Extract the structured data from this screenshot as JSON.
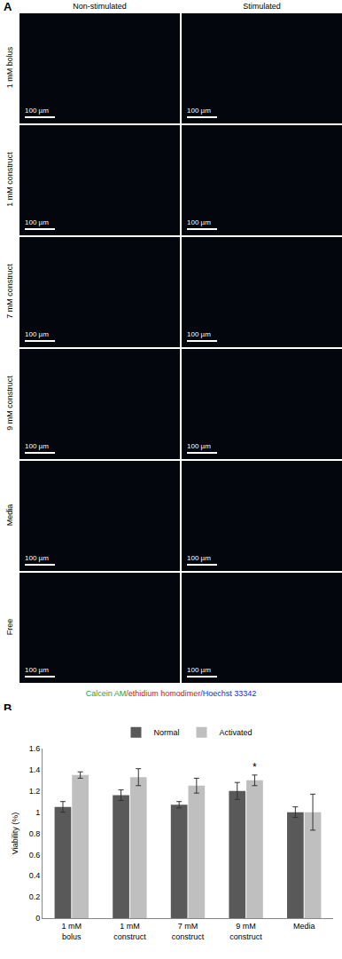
{
  "panel_a": {
    "label": "A",
    "columns": [
      "Non-stimulated",
      "Stimulated"
    ],
    "rows": [
      "1 mM bolus",
      "1 mM construct",
      "7 mM construct",
      "9 mM construct",
      "Media",
      "Free"
    ],
    "scale_bar": "100 µm",
    "stain_legend": {
      "separator": "/",
      "items": [
        {
          "text": "Calcein AM",
          "color": "#1fa51f"
        },
        {
          "text": "ethidium homodimer",
          "color": "#e01010"
        },
        {
          "text": "Hoechst 33342",
          "color": "#1030d0"
        }
      ]
    }
  },
  "chart_data": {
    "type": "bar",
    "panel_label": "B",
    "y_label": "Viability (%)",
    "categories": [
      "1 mM bolus",
      "1 mM construct",
      "7 mM construct",
      "9 mM construct",
      "Media"
    ],
    "series": [
      {
        "name": "Normal",
        "color": "#595959",
        "values": [
          1.05,
          1.16,
          1.07,
          1.2,
          1.0
        ],
        "errors": [
          0.05,
          0.05,
          0.03,
          0.08,
          0.05
        ]
      },
      {
        "name": "Activated",
        "color": "#bfbfbf",
        "values": [
          1.35,
          1.33,
          1.25,
          1.3,
          1.0
        ],
        "errors": [
          0.03,
          0.08,
          0.07,
          0.05,
          0.17
        ]
      }
    ],
    "ylim": [
      0,
      1.6
    ],
    "yticks": [
      0,
      0.2,
      0.4,
      0.6,
      0.8,
      1,
      1.2,
      1.4,
      1.6
    ],
    "grid": false,
    "legend": "top",
    "annotations": [
      {
        "text": "*",
        "category": "9 mM construct",
        "series": "Activated"
      }
    ]
  }
}
